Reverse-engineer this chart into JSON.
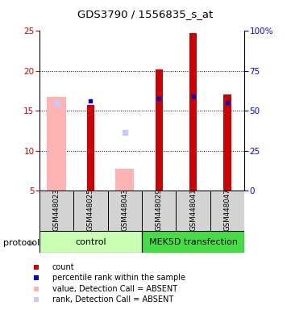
{
  "title": "GDS3790 / 1556835_s_at",
  "samples": [
    "GSM448023",
    "GSM448025",
    "GSM448043",
    "GSM448029",
    "GSM448041",
    "GSM448047"
  ],
  "ylim_left": [
    5,
    25
  ],
  "ylim_right": [
    0,
    100
  ],
  "yticks_left": [
    5,
    10,
    15,
    20,
    25
  ],
  "yticks_right": [
    0,
    25,
    50,
    75,
    100
  ],
  "count_values": [
    null,
    15.7,
    null,
    20.2,
    24.7,
    17.1
  ],
  "rank_values": [
    null,
    16.2,
    null,
    16.5,
    16.8,
    16.0
  ],
  "absent_value": [
    16.7,
    null,
    7.7,
    null,
    null,
    null
  ],
  "absent_rank": [
    15.9,
    null,
    12.3,
    null,
    null,
    null
  ],
  "count_color": "#cc0000",
  "rank_color": "#0000cc",
  "absent_value_color": "#ffb3b3",
  "absent_rank_color": "#c8c8ff",
  "plot_bg": "#ffffff",
  "sample_box_color": "#d3d3d3",
  "control_group_color": "#c8ffb0",
  "mek5d_group_color": "#44dd44",
  "protocol_label": "protocol",
  "legend_items": [
    {
      "color": "#cc0000",
      "label": "count"
    },
    {
      "color": "#0000cc",
      "label": "percentile rank within the sample"
    },
    {
      "color": "#ffb3b3",
      "label": "value, Detection Call = ABSENT"
    },
    {
      "color": "#c8c8ff",
      "label": "rank, Detection Call = ABSENT"
    }
  ]
}
